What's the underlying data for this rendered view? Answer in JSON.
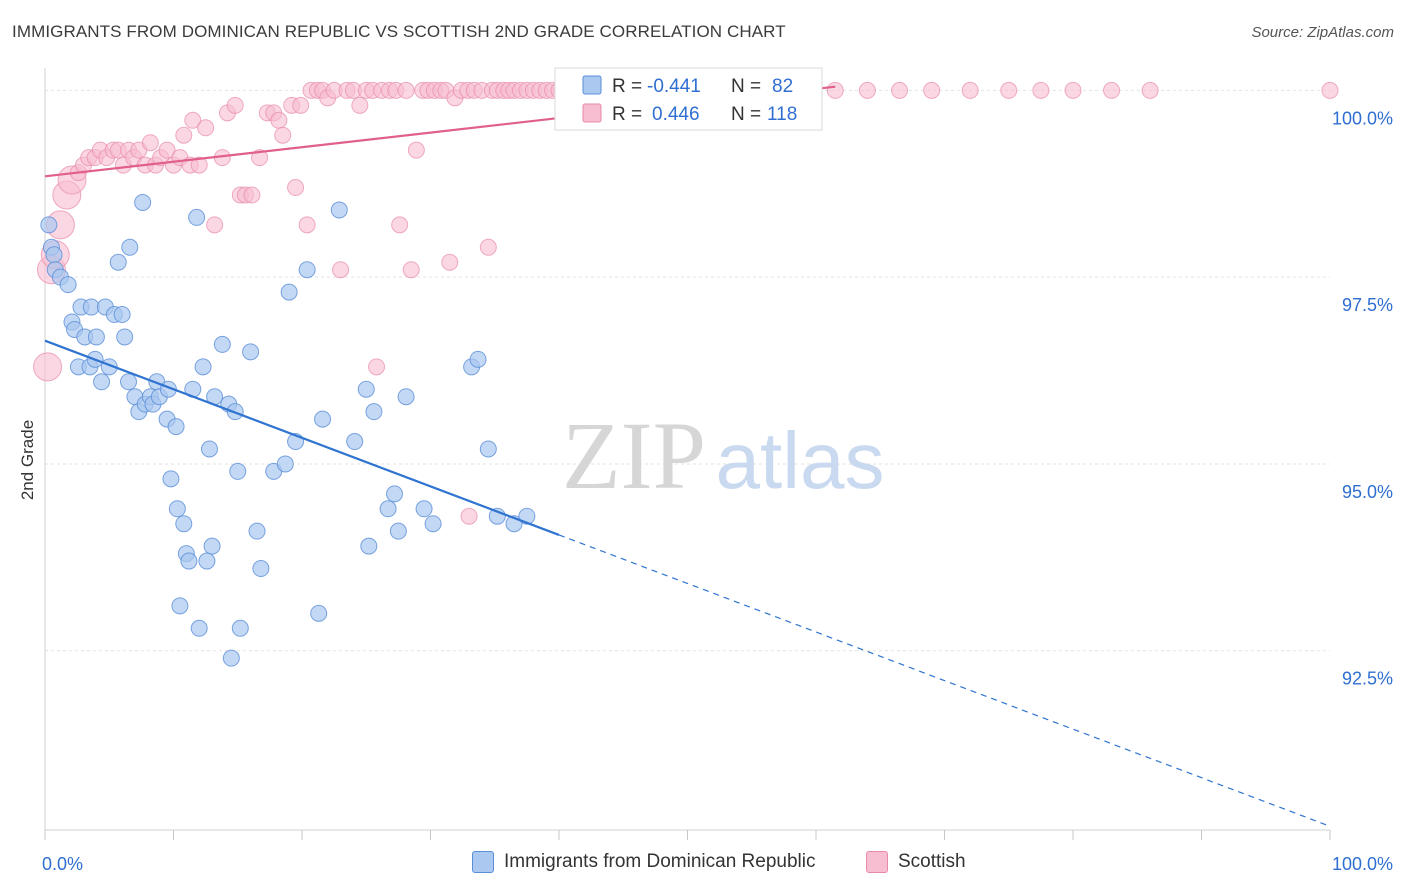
{
  "header": {
    "title": "IMMIGRANTS FROM DOMINICAN REPUBLIC VS SCOTTISH 2ND GRADE CORRELATION CHART",
    "source": "Source: ZipAtlas.com"
  },
  "watermark": {
    "zip": "ZIP",
    "atlas": "atlas"
  },
  "legend_top": {
    "rows": [
      {
        "r_label": "R = ",
        "r_value": "-0.441",
        "n_label": "N = ",
        "n_value": "82"
      },
      {
        "r_label": "R = ",
        "r_value": "0.446",
        "n_label": "N = ",
        "n_value": "118"
      }
    ]
  },
  "legend_bottom": [
    {
      "label": "Immigrants from Dominican Republic"
    },
    {
      "label": "Scottish"
    }
  ],
  "chart_data": {
    "type": "scatter",
    "title": "IMMIGRANTS FROM DOMINICAN REPUBLIC VS SCOTTISH 2ND GRADE CORRELATION CHART",
    "xlabel": "",
    "ylabel": "2nd Grade",
    "xlim": [
      0,
      100
    ],
    "ylim": [
      90.1,
      100.3
    ],
    "x_tick_labels": [
      "0.0%",
      "100.0%"
    ],
    "y_ticks": [
      92.5,
      95.0,
      97.5,
      100.0
    ],
    "y_tick_labels": [
      "92.5%",
      "95.0%",
      "97.5%",
      "100.0%"
    ],
    "grid": true,
    "legend_position": "top-center",
    "colors": {
      "dominican_fill": "#aac8f0",
      "dominican_stroke": "#5b8ed8",
      "dominican_line": "#2f74d0",
      "scottish_fill": "#f7bdd0",
      "scottish_stroke": "#e88aa8",
      "scottish_line": "#e0608a",
      "value_text": "#2f6fd1",
      "grid": "#e2e2e2"
    },
    "series": [
      {
        "name": "Immigrants from Dominican Republic",
        "r": -0.441,
        "n": 82,
        "trend": {
          "x0": 0,
          "y0": 96.65,
          "x1": 100,
          "y1": 90.15,
          "solid_until_x": 40
        },
        "points": [
          [
            0.3,
            98.2
          ],
          [
            0.5,
            97.9
          ],
          [
            0.7,
            97.8
          ],
          [
            0.8,
            97.6
          ],
          [
            1.2,
            97.5
          ],
          [
            1.8,
            97.4
          ],
          [
            2.1,
            96.9
          ],
          [
            2.3,
            96.8
          ],
          [
            2.6,
            96.3
          ],
          [
            2.8,
            97.1
          ],
          [
            3.1,
            96.7
          ],
          [
            3.5,
            96.3
          ],
          [
            3.6,
            97.1
          ],
          [
            3.9,
            96.4
          ],
          [
            4.0,
            96.7
          ],
          [
            4.4,
            96.1
          ],
          [
            4.7,
            97.1
          ],
          [
            5.0,
            96.3
          ],
          [
            5.4,
            97.0
          ],
          [
            5.7,
            97.7
          ],
          [
            6.0,
            97.0
          ],
          [
            6.2,
            96.7
          ],
          [
            6.5,
            96.1
          ],
          [
            6.6,
            97.9
          ],
          [
            7.0,
            95.9
          ],
          [
            7.3,
            95.7
          ],
          [
            7.6,
            98.5
          ],
          [
            7.8,
            95.8
          ],
          [
            8.2,
            95.9
          ],
          [
            8.4,
            95.8
          ],
          [
            8.7,
            96.1
          ],
          [
            8.9,
            95.9
          ],
          [
            9.5,
            95.6
          ],
          [
            9.6,
            96.0
          ],
          [
            9.8,
            94.8
          ],
          [
            10.2,
            95.5
          ],
          [
            10.3,
            94.4
          ],
          [
            10.5,
            93.1
          ],
          [
            10.8,
            94.2
          ],
          [
            11.0,
            93.8
          ],
          [
            11.2,
            93.7
          ],
          [
            11.5,
            96.0
          ],
          [
            11.8,
            98.3
          ],
          [
            12.0,
            92.8
          ],
          [
            12.3,
            96.3
          ],
          [
            12.6,
            93.7
          ],
          [
            12.8,
            95.2
          ],
          [
            13.0,
            93.9
          ],
          [
            13.2,
            95.9
          ],
          [
            13.8,
            96.6
          ],
          [
            14.3,
            95.8
          ],
          [
            14.5,
            92.4
          ],
          [
            14.8,
            95.7
          ],
          [
            15.0,
            94.9
          ],
          [
            15.2,
            92.8
          ],
          [
            16.0,
            96.5
          ],
          [
            16.5,
            94.1
          ],
          [
            16.8,
            93.6
          ],
          [
            17.8,
            94.9
          ],
          [
            18.7,
            95.0
          ],
          [
            19.0,
            97.3
          ],
          [
            19.5,
            95.3
          ],
          [
            20.4,
            97.6
          ],
          [
            21.3,
            93.0
          ],
          [
            21.6,
            95.6
          ],
          [
            22.9,
            98.4
          ],
          [
            24.1,
            95.3
          ],
          [
            25.0,
            96.0
          ],
          [
            25.2,
            93.9
          ],
          [
            25.6,
            95.7
          ],
          [
            26.7,
            94.4
          ],
          [
            27.2,
            94.6
          ],
          [
            27.5,
            94.1
          ],
          [
            28.1,
            95.9
          ],
          [
            29.5,
            94.4
          ],
          [
            30.2,
            94.2
          ],
          [
            33.2,
            96.3
          ],
          [
            33.7,
            96.4
          ],
          [
            34.5,
            95.2
          ],
          [
            35.2,
            94.3
          ],
          [
            36.5,
            94.2
          ],
          [
            37.5,
            94.3
          ]
        ]
      },
      {
        "name": "Scottish",
        "r": 0.446,
        "n": 118,
        "trend": {
          "x0": 0,
          "y0": 98.85,
          "x1": 61.5,
          "y1": 100.05
        },
        "points": [
          [
            0.2,
            96.3
          ],
          [
            0.5,
            97.6
          ],
          [
            0.8,
            97.8
          ],
          [
            1.2,
            98.2
          ],
          [
            1.7,
            98.6
          ],
          [
            2.1,
            98.8
          ],
          [
            2.6,
            98.9
          ],
          [
            3.0,
            99.0
          ],
          [
            3.4,
            99.1
          ],
          [
            3.9,
            99.1
          ],
          [
            4.3,
            99.2
          ],
          [
            4.8,
            99.1
          ],
          [
            5.3,
            99.2
          ],
          [
            5.7,
            99.2
          ],
          [
            6.1,
            99.0
          ],
          [
            6.5,
            99.2
          ],
          [
            6.9,
            99.1
          ],
          [
            7.3,
            99.2
          ],
          [
            7.8,
            99.0
          ],
          [
            8.2,
            99.3
          ],
          [
            8.6,
            99.0
          ],
          [
            9.0,
            99.1
          ],
          [
            9.5,
            99.2
          ],
          [
            10.0,
            99.0
          ],
          [
            10.5,
            99.1
          ],
          [
            10.8,
            99.4
          ],
          [
            11.3,
            99.0
          ],
          [
            11.5,
            99.6
          ],
          [
            12.0,
            99.0
          ],
          [
            12.5,
            99.5
          ],
          [
            13.2,
            98.2
          ],
          [
            13.8,
            99.1
          ],
          [
            14.2,
            99.7
          ],
          [
            14.8,
            99.8
          ],
          [
            15.2,
            98.6
          ],
          [
            15.6,
            98.6
          ],
          [
            16.1,
            98.6
          ],
          [
            16.7,
            99.1
          ],
          [
            17.3,
            99.7
          ],
          [
            17.8,
            99.7
          ],
          [
            18.2,
            99.6
          ],
          [
            18.5,
            99.4
          ],
          [
            19.2,
            99.8
          ],
          [
            19.5,
            98.7
          ],
          [
            19.9,
            99.8
          ],
          [
            20.4,
            98.2
          ],
          [
            20.7,
            100.0
          ],
          [
            21.2,
            100.0
          ],
          [
            21.6,
            100.0
          ],
          [
            22.0,
            99.9
          ],
          [
            22.5,
            100.0
          ],
          [
            23.0,
            97.6
          ],
          [
            23.5,
            100.0
          ],
          [
            24.0,
            100.0
          ],
          [
            24.5,
            99.8
          ],
          [
            25.0,
            100.0
          ],
          [
            25.5,
            100.0
          ],
          [
            25.8,
            96.3
          ],
          [
            26.2,
            100.0
          ],
          [
            26.8,
            100.0
          ],
          [
            27.3,
            100.0
          ],
          [
            27.6,
            98.2
          ],
          [
            28.1,
            100.0
          ],
          [
            28.5,
            97.6
          ],
          [
            28.9,
            99.2
          ],
          [
            29.4,
            100.0
          ],
          [
            29.8,
            100.0
          ],
          [
            30.3,
            100.0
          ],
          [
            30.8,
            100.0
          ],
          [
            31.2,
            100.0
          ],
          [
            31.5,
            97.7
          ],
          [
            31.9,
            99.9
          ],
          [
            32.4,
            100.0
          ],
          [
            32.9,
            100.0
          ],
          [
            33.0,
            94.3
          ],
          [
            33.4,
            100.0
          ],
          [
            34.0,
            100.0
          ],
          [
            34.5,
            97.9
          ],
          [
            34.8,
            100.0
          ],
          [
            35.2,
            100.0
          ],
          [
            35.7,
            100.0
          ],
          [
            36.1,
            100.0
          ],
          [
            36.5,
            100.0
          ],
          [
            37.0,
            100.0
          ],
          [
            37.5,
            100.0
          ],
          [
            38.0,
            100.0
          ],
          [
            38.5,
            100.0
          ],
          [
            39.0,
            100.0
          ],
          [
            39.5,
            100.0
          ],
          [
            40.0,
            100.0
          ],
          [
            41.0,
            100.0
          ],
          [
            42.0,
            100.0
          ],
          [
            43.0,
            100.0
          ],
          [
            44.0,
            100.0
          ],
          [
            45.0,
            100.0
          ],
          [
            46.0,
            100.0
          ],
          [
            47.0,
            100.0
          ],
          [
            48.0,
            100.0
          ],
          [
            49.0,
            100.0
          ],
          [
            50.0,
            100.0
          ],
          [
            51.0,
            100.0
          ],
          [
            52.0,
            100.0
          ],
          [
            53.0,
            100.0
          ],
          [
            54.0,
            100.0
          ],
          [
            55.0,
            100.0
          ],
          [
            57.0,
            100.0
          ],
          [
            59.0,
            100.0
          ],
          [
            61.5,
            100.0
          ],
          [
            64.0,
            100.0
          ],
          [
            66.5,
            100.0
          ],
          [
            69.0,
            100.0
          ],
          [
            72.0,
            100.0
          ],
          [
            75.0,
            100.0
          ],
          [
            77.5,
            100.0
          ],
          [
            80.0,
            100.0
          ],
          [
            83.0,
            100.0
          ],
          [
            86.0,
            100.0
          ],
          [
            100.0,
            100.0
          ]
        ]
      }
    ]
  }
}
